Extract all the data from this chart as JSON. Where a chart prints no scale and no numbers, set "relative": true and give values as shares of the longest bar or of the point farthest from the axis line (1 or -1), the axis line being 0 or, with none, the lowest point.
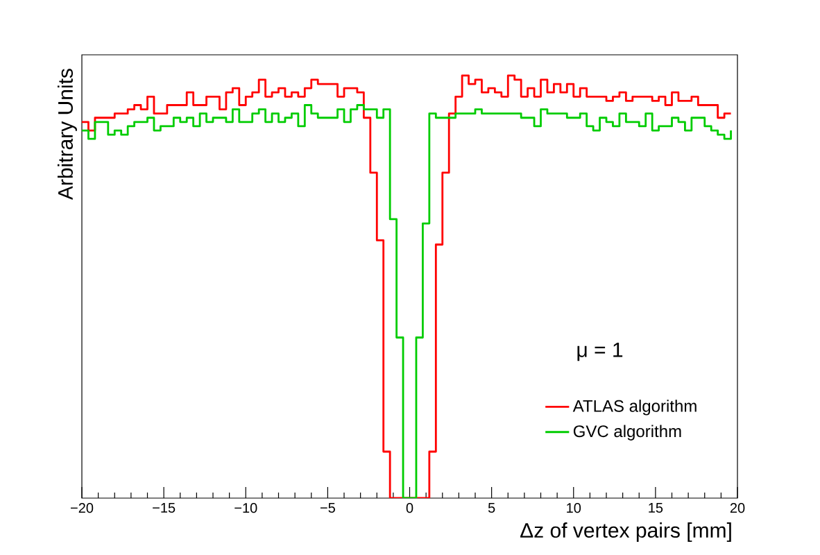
{
  "chart_data": {
    "type": "step",
    "xlabel": "Δz of vertex pairs [mm]",
    "ylabel": "Arbitrary Units",
    "relative": true,
    "xlim": [
      -20,
      20
    ],
    "xticks": [
      {
        "value": -20,
        "label": "−20"
      },
      {
        "value": -15,
        "label": "−15"
      },
      {
        "value": -10,
        "label": "−10"
      },
      {
        "value": -5,
        "label": "−5"
      },
      {
        "value": 0,
        "label": "0"
      },
      {
        "value": 5,
        "label": "5"
      },
      {
        "value": 10,
        "label": "10"
      },
      {
        "value": 15,
        "label": "15"
      },
      {
        "value": 20,
        "label": "20"
      }
    ],
    "annotations": [
      "μ = 1"
    ],
    "legend": "bottom right",
    "x": [
      -20,
      -19.6,
      -19.2,
      -18.8,
      -18.4,
      -18,
      -17.6,
      -17.2,
      -16.8,
      -16.4,
      -16,
      -15.6,
      -15.2,
      -14.8,
      -14.4,
      -14,
      -13.6,
      -13.2,
      -12.8,
      -12.4,
      -12,
      -11.6,
      -11.2,
      -10.8,
      -10.4,
      -10,
      -9.6,
      -9.2,
      -8.8,
      -8.4,
      -8,
      -7.6,
      -7.2,
      -6.8,
      -6.4,
      -6,
      -5.6,
      -5.2,
      -4.8,
      -4.4,
      -4,
      -3.6,
      -3.2,
      -2.8,
      -2.4,
      -2,
      -1.6,
      -1.2,
      -0.8,
      -0.4,
      0,
      0.4,
      0.8,
      1.2,
      1.6,
      2,
      2.4,
      2.8,
      3.2,
      3.6,
      4,
      4.4,
      4.8,
      5.2,
      5.6,
      6,
      6.4,
      6.8,
      7.2,
      7.6,
      8,
      8.4,
      8.8,
      9.2,
      9.6,
      10,
      10.4,
      10.8,
      11.2,
      11.6,
      12,
      12.4,
      12.8,
      13.2,
      13.6,
      14,
      14.4,
      14.8,
      15.2,
      15.6,
      16,
      16.4,
      16.8,
      17.2,
      17.6,
      18,
      18.4,
      18.8,
      19.2,
      19.6
    ],
    "series": [
      {
        "name": "ATLAS algorithm",
        "color": "#ff0000",
        "values": [
          0.89,
          0.87,
          0.9,
          0.9,
          0.9,
          0.91,
          0.91,
          0.92,
          0.93,
          0.92,
          0.95,
          0.91,
          0.91,
          0.93,
          0.93,
          0.93,
          0.96,
          0.93,
          0.93,
          0.95,
          0.95,
          0.92,
          0.96,
          0.97,
          0.93,
          0.95,
          0.96,
          0.99,
          0.95,
          0.96,
          0.97,
          0.95,
          0.96,
          0.95,
          0.97,
          0.99,
          0.98,
          0.98,
          0.98,
          0.95,
          0.97,
          0.97,
          0.96,
          0.9,
          0.77,
          0.61,
          0.11,
          0,
          0,
          0,
          0,
          0,
          0,
          0.11,
          0.6,
          0.77,
          0.91,
          0.95,
          1.0,
          0.98,
          0.99,
          0.96,
          0.97,
          0.96,
          0.95,
          1.0,
          0.99,
          0.95,
          0.97,
          0.95,
          0.99,
          0.96,
          0.98,
          0.96,
          0.98,
          0.95,
          0.97,
          0.95,
          0.95,
          0.95,
          0.94,
          0.95,
          0.96,
          0.94,
          0.95,
          0.95,
          0.95,
          0.94,
          0.95,
          0.93,
          0.96,
          0.94,
          0.94,
          0.95,
          0.93,
          0.93,
          0.93,
          0.9,
          0.91,
          0.91
        ]
      },
      {
        "name": "GVC algorithm",
        "color": "#00cc00",
        "values": [
          0.87,
          0.85,
          0.89,
          0.89,
          0.86,
          0.87,
          0.86,
          0.88,
          0.89,
          0.89,
          0.9,
          0.87,
          0.88,
          0.88,
          0.9,
          0.89,
          0.9,
          0.88,
          0.91,
          0.89,
          0.9,
          0.9,
          0.89,
          0.92,
          0.89,
          0.89,
          0.91,
          0.92,
          0.89,
          0.91,
          0.89,
          0.9,
          0.91,
          0.88,
          0.93,
          0.91,
          0.9,
          0.9,
          0.9,
          0.92,
          0.89,
          0.92,
          0.93,
          0.92,
          0.92,
          0.9,
          0.92,
          0.66,
          0.38,
          0,
          0,
          0.38,
          0.65,
          0.91,
          0.9,
          0.9,
          0.9,
          0.91,
          0.91,
          0.91,
          0.92,
          0.91,
          0.91,
          0.91,
          0.91,
          0.91,
          0.91,
          0.9,
          0.9,
          0.88,
          0.92,
          0.91,
          0.91,
          0.91,
          0.9,
          0.9,
          0.91,
          0.88,
          0.87,
          0.9,
          0.89,
          0.88,
          0.91,
          0.89,
          0.89,
          0.88,
          0.91,
          0.87,
          0.88,
          0.88,
          0.9,
          0.89,
          0.87,
          0.9,
          0.9,
          0.88,
          0.87,
          0.86,
          0.85,
          0.87
        ]
      }
    ]
  }
}
